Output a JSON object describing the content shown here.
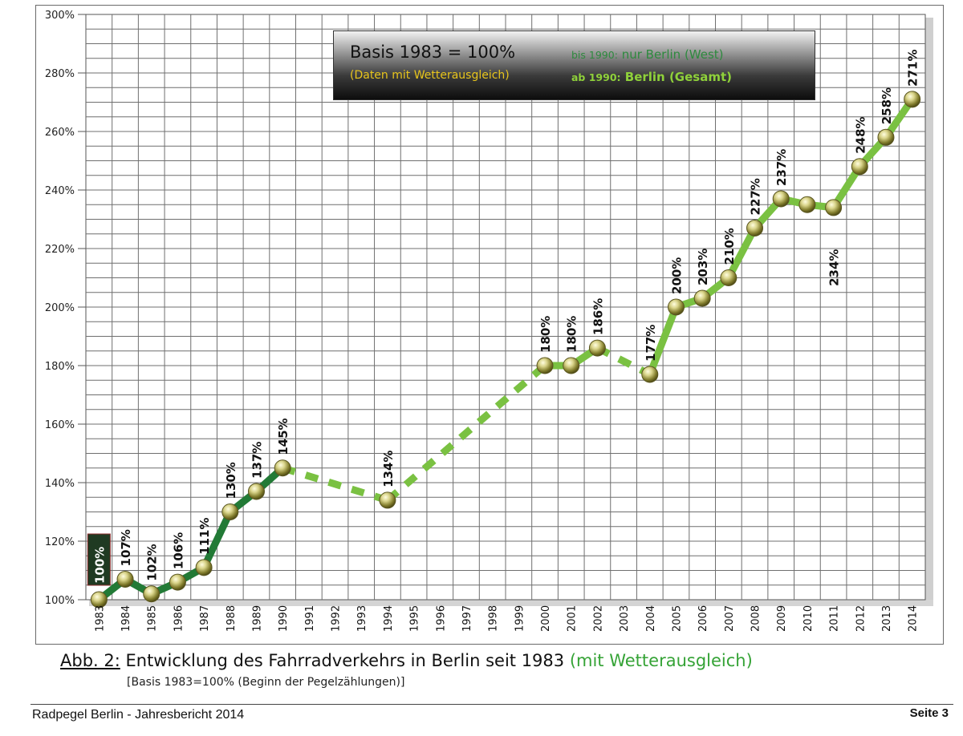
{
  "chart_data": {
    "type": "line",
    "categories": [
      "1983",
      "1984",
      "1985",
      "1986",
      "1987",
      "1988",
      "1989",
      "1990",
      "1991",
      "1992",
      "1993",
      "1994",
      "1995",
      "1996",
      "1997",
      "1998",
      "1999",
      "2000",
      "2001",
      "2002",
      "2003",
      "2004",
      "2005",
      "2006",
      "2007",
      "2008",
      "2009",
      "2010",
      "2011",
      "2012",
      "2013",
      "2014"
    ],
    "values": [
      100,
      107,
      102,
      106,
      111,
      130,
      137,
      145,
      null,
      null,
      null,
      134,
      null,
      null,
      null,
      null,
      null,
      180,
      180,
      186,
      null,
      177,
      200,
      203,
      210,
      227,
      237,
      235,
      234,
      248,
      258,
      271
    ],
    "data_labels": [
      "100%",
      "107%",
      "102%",
      "106%",
      "111%",
      "130%",
      "137%",
      "145%",
      "",
      "",
      "",
      "134%",
      "",
      "",
      "",
      "",
      "",
      "180%",
      "180%",
      "186%",
      "",
      "177%",
      "200%",
      "203%",
      "210%",
      "227%",
      "237%",
      "",
      "234%",
      "248%",
      "258%",
      "271%"
    ],
    "series_notes": {
      "west_until_1990": {
        "from": "1983",
        "to": "1990",
        "color": "#227a36",
        "style": "solid"
      },
      "gesamt_from_1990": {
        "from": "1990",
        "to": "2014",
        "color": "#7ac142",
        "style": "solid, dashed across missing years"
      }
    },
    "ylim": [
      100,
      300
    ],
    "yticks": [
      100,
      120,
      140,
      160,
      180,
      200,
      220,
      240,
      260,
      280,
      300
    ],
    "ytick_labels": [
      "100%",
      "120%",
      "140%",
      "160%",
      "180%",
      "200%",
      "220%",
      "240%",
      "260%",
      "280%",
      "300%"
    ],
    "grid": true,
    "title": "",
    "xlabel": "",
    "ylabel": ""
  },
  "legend": {
    "basis": "Basis 1983 = 100%",
    "daten": "(Daten mit Wetterausgleich)",
    "west_prefix": "bis 1990:",
    "west_text": "nur Berlin (West)",
    "gesamt_prefix": "ab 1990:",
    "gesamt_text": "Berlin (Gesamt)"
  },
  "caption": {
    "abb": "Abb. 2:",
    "main": "Entwicklung des Fahrradverkehrs in Berlin seit 1983",
    "green": "(mit Wetterausgleich)",
    "sub": "[Basis 1983=100% (Beginn der Pegelzählungen)]"
  },
  "footer": {
    "left": "Radpegel Berlin - Jahresbericht 2014",
    "right": "Seite 3"
  },
  "colors": {
    "west_line": "#227a36",
    "gesamt_line": "#7ac142",
    "grid": "#6f6f6f",
    "marker": "#b7b25a"
  }
}
